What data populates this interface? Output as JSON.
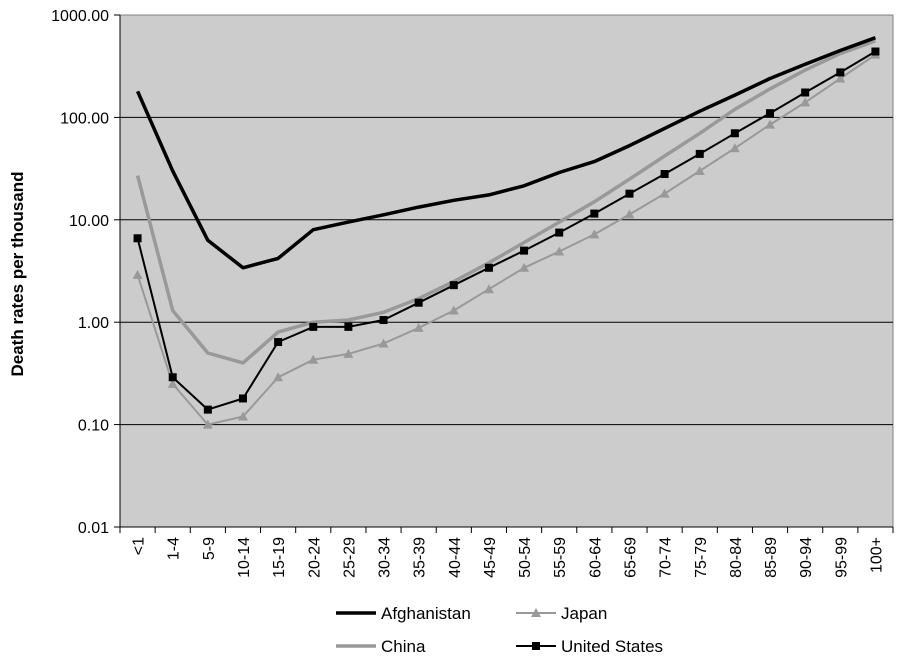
{
  "chart_data": {
    "type": "line",
    "title": "",
    "xlabel": "",
    "ylabel": "Death rates per thousand",
    "y_scale": "log",
    "ylim": [
      0.01,
      1000
    ],
    "y_ticks": [
      "0.01",
      "0.10",
      "1.00",
      "10.00",
      "100.00",
      "1000.00"
    ],
    "grid": true,
    "plot_background": "#cccccc",
    "legend_position": "bottom",
    "categories": [
      "<1",
      "1-4",
      "5-9",
      "10-14",
      "15-19",
      "20-24",
      "25-29",
      "30-34",
      "35-39",
      "40-44",
      "45-49",
      "50-54",
      "55-59",
      "60-64",
      "65-69",
      "70-74",
      "75-79",
      "80-84",
      "85-89",
      "90-94",
      "95-99",
      "100+"
    ],
    "series": [
      {
        "name": "Afghanistan",
        "color": "#000000",
        "marker": "none",
        "values": [
          180,
          30,
          6.3,
          3.4,
          4.2,
          8.0,
          9.5,
          11.2,
          13.3,
          15.5,
          17.5,
          21.5,
          29,
          37,
          53,
          78,
          115,
          165,
          240,
          330,
          450,
          600
        ]
      },
      {
        "name": "China",
        "color": "#999999",
        "marker": "none",
        "values": [
          27,
          1.3,
          0.5,
          0.4,
          0.8,
          1.0,
          1.05,
          1.25,
          1.7,
          2.5,
          3.8,
          6.0,
          9.5,
          15,
          25,
          42,
          70,
          120,
          190,
          290,
          420,
          560
        ]
      },
      {
        "name": "Japan",
        "color": "#999999",
        "marker": "triangle",
        "values": [
          2.9,
          0.25,
          0.1,
          0.12,
          0.29,
          0.43,
          0.49,
          0.62,
          0.88,
          1.3,
          2.1,
          3.4,
          4.9,
          7.2,
          11.3,
          18,
          30,
          50,
          85,
          140,
          240,
          410
        ]
      },
      {
        "name": "United States",
        "color": "#000000",
        "marker": "square",
        "values": [
          6.6,
          0.29,
          0.14,
          0.18,
          0.64,
          0.9,
          0.9,
          1.05,
          1.55,
          2.3,
          3.4,
          5.0,
          7.5,
          11.5,
          18,
          28,
          44,
          70,
          110,
          175,
          275,
          440
        ]
      }
    ]
  }
}
